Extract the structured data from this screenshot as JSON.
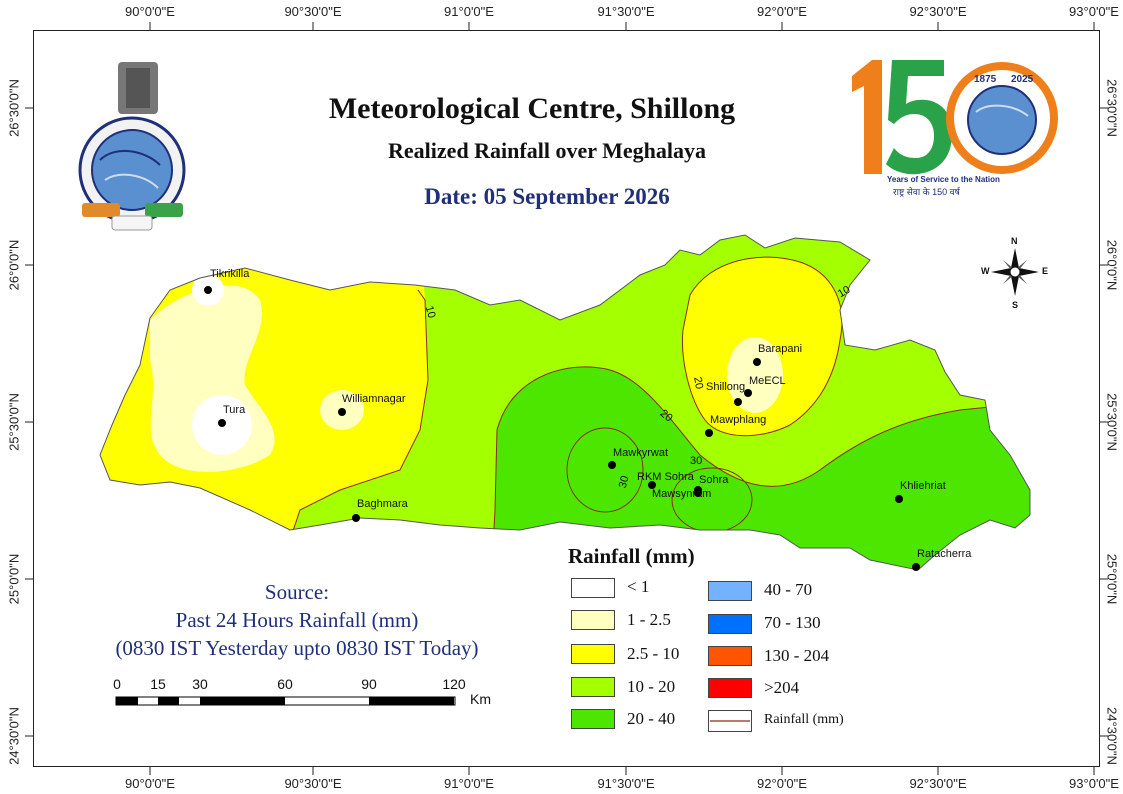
{
  "titles": {
    "main": "Meteorological Centre, Shillong",
    "subtitle": "Realized Rainfall over Meghalaya",
    "date": "Date: 05 September 2026"
  },
  "axes": {
    "lon_ticks": [
      "90°0'0\"E",
      "90°30'0\"E",
      "91°0'0\"E",
      "91°30'0\"E",
      "92°0'0\"E",
      "92°30'0\"E",
      "93°0'0\"E"
    ],
    "lat_ticks": [
      "26°30'0\"N",
      "26°0'0\"N",
      "25°30'0\"N",
      "25°0'0\"N",
      "24°30'0\"N"
    ]
  },
  "stations": [
    "Tikrikilla",
    "Tura",
    "Williamnagar",
    "Baghmara",
    "Barapani",
    "Shillong",
    "MeECL",
    "Mawphlang",
    "Mawkyrwat",
    "RKM Sohra",
    "Sohra",
    "Mawsynram",
    "Khliehriat",
    "Ratacherra"
  ],
  "contour_labels": [
    "10",
    "20",
    "30",
    "30",
    "20",
    "10"
  ],
  "compass": {
    "n": "N",
    "s": "S",
    "e": "E",
    "w": "W"
  },
  "source": {
    "line1": "Source:",
    "line2": "Past 24 Hours Rainfall (mm)",
    "line3": "(0830 IST Yesterday upto 0830 IST Today)"
  },
  "scale_bar": {
    "ticks": [
      "0",
      "15",
      "30",
      "60",
      "90",
      "120"
    ],
    "unit": "Km"
  },
  "legend": {
    "title": "Rainfall (mm)",
    "items": [
      {
        "label": "< 1",
        "color": "#ffffff"
      },
      {
        "label": "1 - 2.5",
        "color": "#ffffc0"
      },
      {
        "label": "2.5 - 10",
        "color": "#ffff00"
      },
      {
        "label": "10 - 20",
        "color": "#a4ff00"
      },
      {
        "label": "20 - 40",
        "color": "#4ce600"
      },
      {
        "label": "40 - 70",
        "color": "#73b2ff"
      },
      {
        "label": "70 - 130",
        "color": "#0070ff"
      },
      {
        "label": "130 - 204",
        "color": "#ff5500"
      },
      {
        "label": ">204",
        "color": "#ff0000"
      }
    ],
    "line_item": {
      "label": "Rainfall (mm)",
      "color": "#8b2a1c"
    }
  },
  "logo150": {
    "number": "150",
    "years": [
      "1875",
      "2025"
    ],
    "tagline": "Years of Service to the Nation",
    "tagline_hindi": "राष्ट्र सेवा के 150 वर्ष"
  },
  "map_colors": {
    "light_green": "#a4ff00",
    "dark_green": "#4ce600",
    "yellow": "#ffff00",
    "pale_yellow": "#ffffc0",
    "contour": "#8b2a1c"
  }
}
